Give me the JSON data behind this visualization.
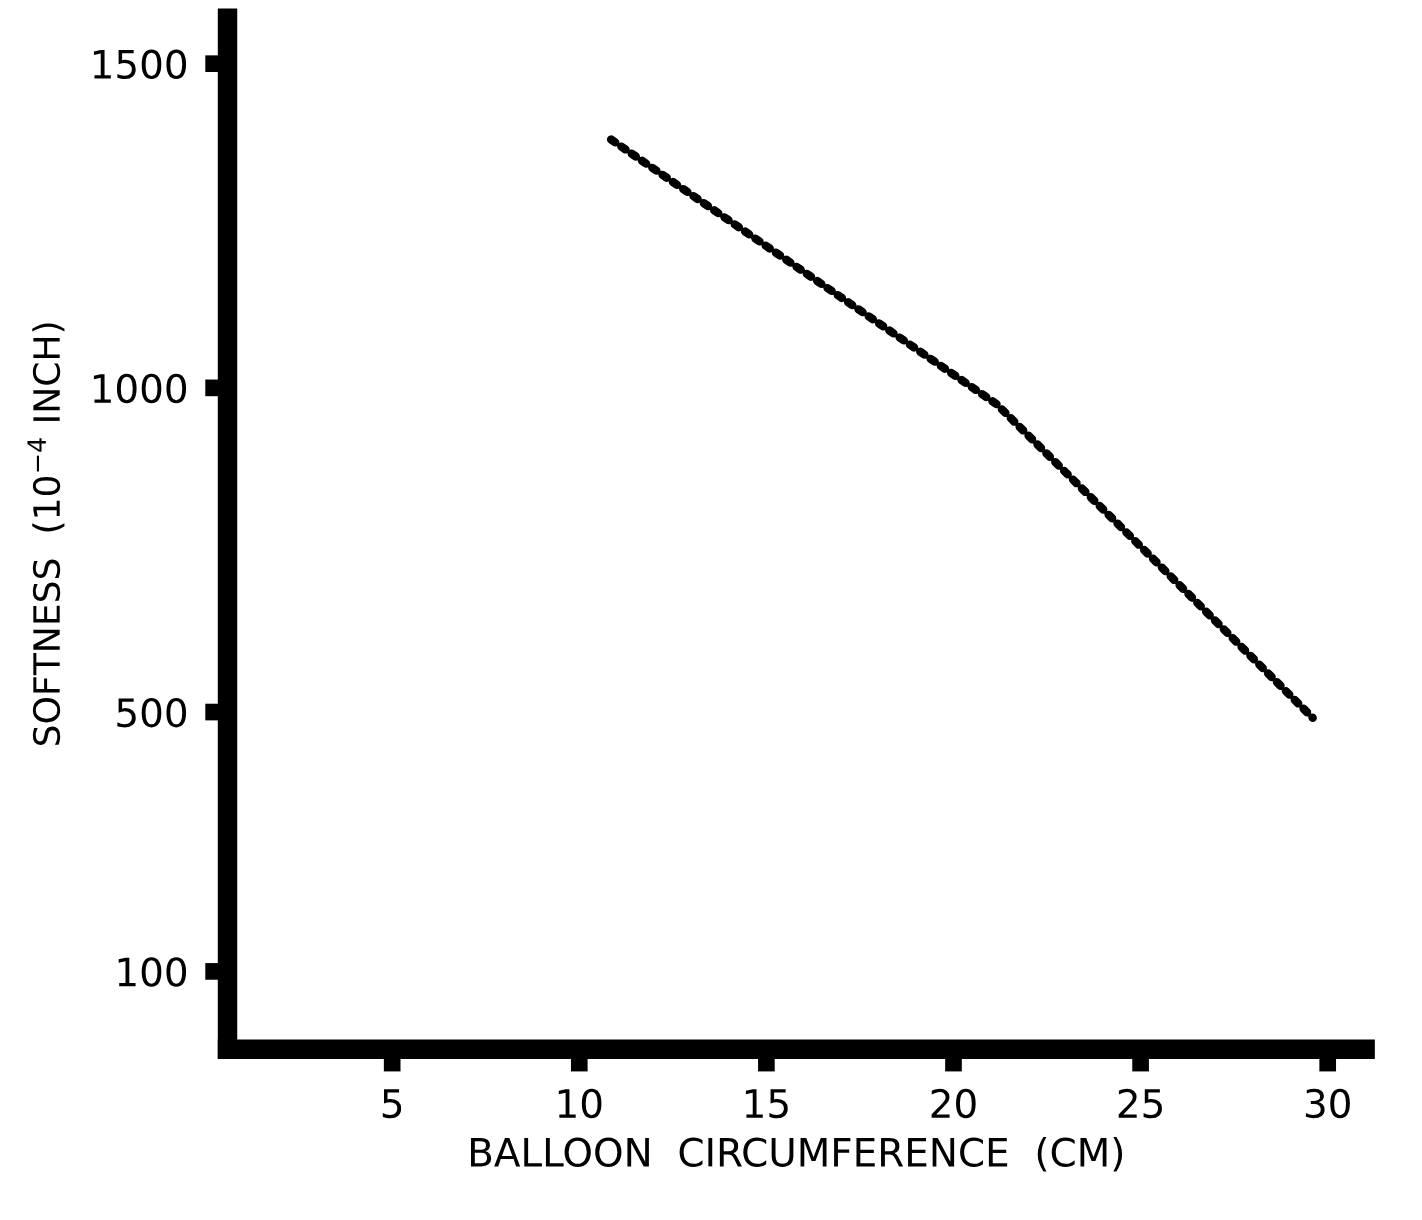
{
  "chart_data": {
    "type": "line",
    "xlabel": "BALLOON  CIRCUMFERENCE  (CM)",
    "ylabel": "SOFTNESS  (10$^{−4}$ INCH)",
    "x": [
      10.85,
      21.15,
      25.2,
      29.6
    ],
    "series": [
      {
        "color": "#000000",
        "values": [
          1383,
          975,
          744,
          491
        ]
      }
    ],
    "line_style": "dotted",
    "marker": "none",
    "xlim": [
      0.6,
      31
    ],
    "xticks": [
      5,
      10,
      15,
      20,
      25,
      30
    ],
    "ylim": [
      -20,
      1570
    ],
    "yticks": [
      100,
      500,
      1000,
      1500
    ],
    "grid": false,
    "legend": false
  }
}
